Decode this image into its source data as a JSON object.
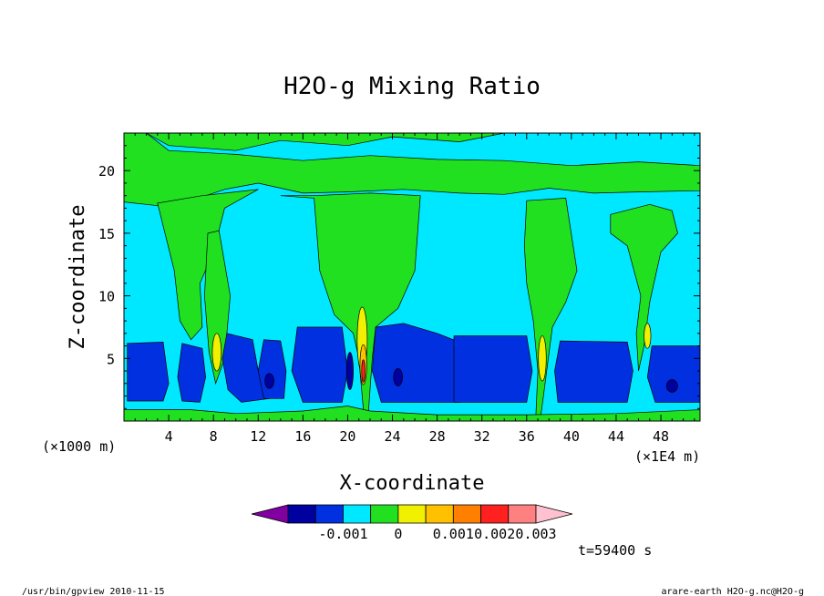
{
  "chart_data": {
    "type": "heatmap",
    "title": "H2O-g Mixing Ratio",
    "xlabel": "X-coordinate",
    "ylabel": "Z-coordinate",
    "x_unit_left": "(×1000 m)",
    "x_unit_right": "(×1E4 m)",
    "x_ticks": [
      "4",
      "8",
      "12",
      "16",
      "20",
      "24",
      "28",
      "32",
      "36",
      "40",
      "44",
      "48"
    ],
    "y_ticks": [
      "5",
      "10",
      "15",
      "20"
    ],
    "xlim": [
      0,
      51.5
    ],
    "ylim": [
      0,
      23
    ],
    "time_label": "t=59400 s",
    "colorbar": {
      "colors": [
        "#8000a0",
        "#0000a0",
        "#0030e0",
        "#00e8ff",
        "#20e020",
        "#f0f000",
        "#ffc000",
        "#ff8000",
        "#ff2020",
        "#ff8080",
        "#ffc0d0"
      ],
      "tick_labels": [
        "-0.001",
        "0",
        "0.001",
        "0.002",
        "0.003"
      ]
    },
    "regions": [
      {
        "name": "background",
        "level": "cyan"
      },
      {
        "name": "upper-layer",
        "level": "green"
      },
      {
        "name": "lower-layer",
        "level": "blue"
      },
      {
        "name": "plume-x8",
        "level": "green"
      },
      {
        "name": "plume-x21",
        "level": "green"
      },
      {
        "name": "plume-x38",
        "level": "green"
      },
      {
        "name": "plume-x47",
        "level": "green"
      }
    ]
  },
  "footer": {
    "left": "/usr/bin/gpview  2010-11-15",
    "right": "arare-earth_H2O-g.nc@H2O-g"
  }
}
